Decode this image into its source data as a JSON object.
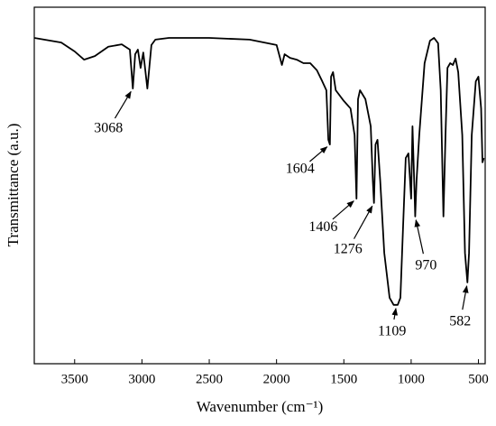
{
  "chart_data": {
    "type": "line",
    "xlabel": "Wavenumber (cm⁻¹)",
    "ylabel": "Transmittance (a.u.)",
    "xlim": [
      3800,
      450
    ],
    "xticks": [
      3500,
      3000,
      2500,
      2000,
      1500,
      1000,
      500
    ],
    "ylim": [
      0,
      100
    ],
    "color": "#000000",
    "x": [
      3800,
      3600,
      3500,
      3430,
      3350,
      3250,
      3150,
      3090,
      3068,
      3050,
      3030,
      3010,
      2990,
      2960,
      2930,
      2900,
      2800,
      2500,
      2200,
      2000,
      1960,
      1940,
      1900,
      1850,
      1800,
      1750,
      1700,
      1660,
      1630,
      1615,
      1604,
      1595,
      1580,
      1560,
      1500,
      1450,
      1420,
      1406,
      1395,
      1380,
      1340,
      1300,
      1285,
      1276,
      1265,
      1250,
      1230,
      1200,
      1160,
      1130,
      1100,
      1080,
      1060,
      1040,
      1020,
      1000,
      990,
      975,
      970,
      960,
      940,
      900,
      860,
      830,
      800,
      780,
      760,
      745,
      730,
      710,
      690,
      670,
      650,
      620,
      600,
      582,
      570,
      550,
      520,
      500,
      480,
      470,
      460
    ],
    "values": [
      91.4,
      90.1,
      87.6,
      85.3,
      86.3,
      88.9,
      89.6,
      88.1,
      77.2,
      86.8,
      88.1,
      83.0,
      87.3,
      77.2,
      89.4,
      90.9,
      91.4,
      91.4,
      90.9,
      89.4,
      83.8,
      86.8,
      85.8,
      85.3,
      84.3,
      84.3,
      82.3,
      79.2,
      76.7,
      62.8,
      61.5,
      80.5,
      81.8,
      76.7,
      73.7,
      71.6,
      64.1,
      46.3,
      74.2,
      76.7,
      74.2,
      66.6,
      51.4,
      45.1,
      61.5,
      62.8,
      51.4,
      31.1,
      18.5,
      16.5,
      16.5,
      18.5,
      38.7,
      57.7,
      59.0,
      46.3,
      66.6,
      48.6,
      41.3,
      51.4,
      64.1,
      84.3,
      90.6,
      91.4,
      89.9,
      76.7,
      41.3,
      64.1,
      83.0,
      84.3,
      83.8,
      85.6,
      81.8,
      64.1,
      31.1,
      22.8,
      31.1,
      64.1,
      79.2,
      80.5,
      71.6,
      56.5,
      57.7
    ],
    "annotations": [
      {
        "label": "3068",
        "x": 3068,
        "y": 77.2
      },
      {
        "label": "1604",
        "x": 1604,
        "y": 61.5
      },
      {
        "label": "1406",
        "x": 1406,
        "y": 46.3
      },
      {
        "label": "1276",
        "x": 1276,
        "y": 45.1
      },
      {
        "label": "1109",
        "x": 1109,
        "y": 16.5
      },
      {
        "label": "970",
        "x": 970,
        "y": 41.3
      },
      {
        "label": "582",
        "x": 582,
        "y": 22.8
      }
    ]
  }
}
